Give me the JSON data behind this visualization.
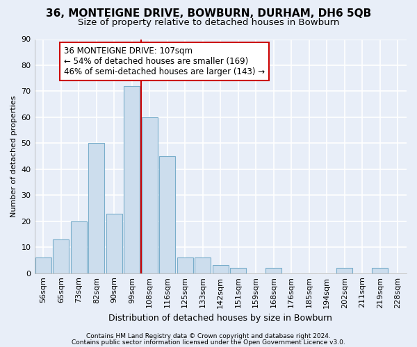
{
  "title1": "36, MONTEIGNE DRIVE, BOWBURN, DURHAM, DH6 5QB",
  "title2": "Size of property relative to detached houses in Bowburn",
  "xlabel": "Distribution of detached houses by size in Bowburn",
  "ylabel": "Number of detached properties",
  "bar_labels": [
    "56sqm",
    "65sqm",
    "73sqm",
    "82sqm",
    "90sqm",
    "99sqm",
    "108sqm",
    "116sqm",
    "125sqm",
    "133sqm",
    "142sqm",
    "151sqm",
    "159sqm",
    "168sqm",
    "176sqm",
    "185sqm",
    "194sqm",
    "202sqm",
    "211sqm",
    "219sqm",
    "228sqm"
  ],
  "bar_values": [
    6,
    13,
    20,
    50,
    23,
    72,
    60,
    45,
    6,
    6,
    3,
    2,
    0,
    2,
    0,
    0,
    0,
    2,
    0,
    2,
    0
  ],
  "bar_color": "#ccdded",
  "bar_edge_color": "#7aaecb",
  "vline_x": 5.5,
  "vline_color": "#cc0000",
  "annotation_text": "36 MONTEIGNE DRIVE: 107sqm\n← 54% of detached houses are smaller (169)\n46% of semi-detached houses are larger (143) →",
  "annotation_box_color": "#ffffff",
  "annotation_box_edge": "#cc0000",
  "ylim": [
    0,
    90
  ],
  "yticks": [
    0,
    10,
    20,
    30,
    40,
    50,
    60,
    70,
    80,
    90
  ],
  "footer1": "Contains HM Land Registry data © Crown copyright and database right 2024.",
  "footer2": "Contains public sector information licensed under the Open Government Licence v3.0.",
  "bg_color": "#e8eef8",
  "plot_bg_color": "#e8eef8",
  "grid_color": "#ffffff",
  "title1_fontsize": 11,
  "title2_fontsize": 9.5,
  "xlabel_fontsize": 9,
  "ylabel_fontsize": 8,
  "tick_fontsize": 8,
  "annot_fontsize": 8.5,
  "footer_fontsize": 6.5
}
